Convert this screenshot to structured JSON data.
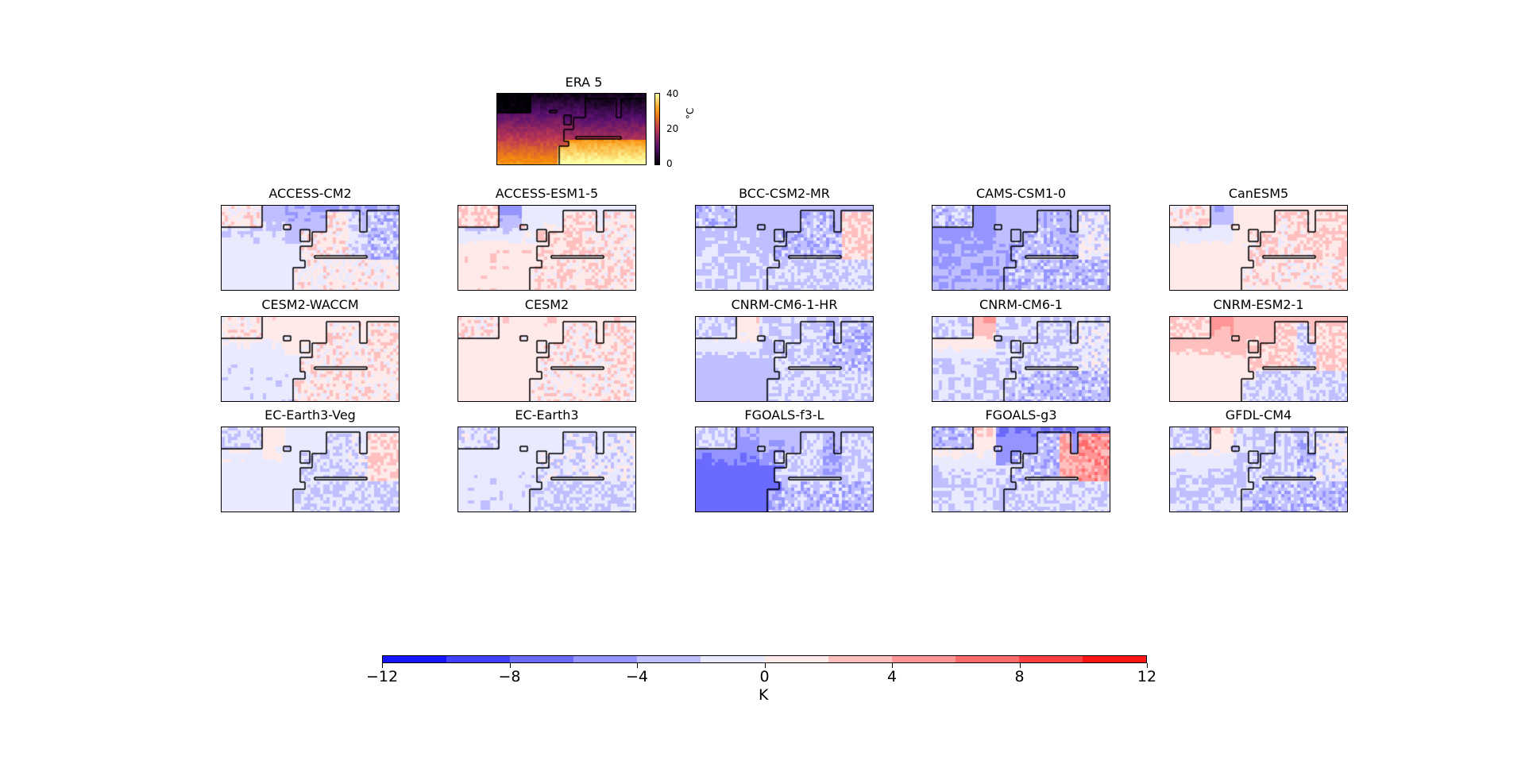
{
  "reference": {
    "title": "ERA 5",
    "colorbar": {
      "ticks": [
        "0",
        "20",
        "40"
      ],
      "unit": "$^\\circ$C",
      "unit_display": "°C",
      "cmap": "inferno",
      "range": [
        0,
        40
      ]
    }
  },
  "panels": [
    {
      "title": "ACCESS-CM2",
      "bias": {
        "atl_nw": -3,
        "atl_sw": -1,
        "atl_ne": -4,
        "africa": 0.5,
        "europe": 1,
        "east": -2,
        "mide": -3
      }
    },
    {
      "title": "ACCESS-ESM1-5",
      "bias": {
        "atl_nw": -5,
        "atl_sw": 1.5,
        "atl_ne": -1,
        "africa": 1.5,
        "europe": 2,
        "east": 1.5,
        "mide": 1
      }
    },
    {
      "title": "BCC-CSM2-MR",
      "bias": {
        "atl_nw": -3,
        "atl_sw": -2,
        "atl_ne": -3,
        "africa": -2,
        "europe": -3,
        "east": -3,
        "mide": 2
      }
    },
    {
      "title": "CAMS-CSM1-0",
      "bias": {
        "atl_nw": -5,
        "atl_sw": -4,
        "atl_ne": -3,
        "africa": -3,
        "europe": -3,
        "east": -4,
        "mide": -1
      }
    },
    {
      "title": "CanESM5",
      "bias": {
        "atl_nw": -4,
        "atl_sw": 1,
        "atl_ne": 1,
        "africa": 1,
        "europe": 1.5,
        "east": 1.5,
        "mide": 2
      }
    },
    {
      "title": "CESM2-WACCM",
      "bias": {
        "atl_nw": 1.5,
        "atl_sw": -1.5,
        "atl_ne": 1.5,
        "africa": 1,
        "europe": 1,
        "east": 0.5,
        "mide": 1.5
      }
    },
    {
      "title": "CESM2",
      "bias": {
        "atl_nw": 1.5,
        "atl_sw": 1,
        "atl_ne": 1.5,
        "africa": 1,
        "europe": 1,
        "east": 1,
        "mide": 1.5
      }
    },
    {
      "title": "CNRM-CM6-1-HR",
      "bias": {
        "atl_nw": 2,
        "atl_sw": -3,
        "atl_ne": -2,
        "africa": -2,
        "europe": -2,
        "east": -3,
        "mide": -3
      }
    },
    {
      "title": "CNRM-CM6-1",
      "bias": {
        "atl_nw": 4,
        "atl_sw": -2,
        "atl_ne": -2,
        "africa": -3,
        "europe": -2,
        "east": -2,
        "mide": -1
      }
    },
    {
      "title": "CNRM-ESM2-1",
      "bias": {
        "atl_nw": 5,
        "atl_sw": 1,
        "atl_ne": 3,
        "africa": -2,
        "europe": 2,
        "east": -2,
        "mide": 2
      }
    },
    {
      "title": "EC-Earth3-Veg",
      "bias": {
        "atl_nw": 1,
        "atl_sw": -1,
        "atl_ne": -1,
        "africa": -2,
        "europe": -2,
        "east": -1,
        "mide": 2
      }
    },
    {
      "title": "EC-Earth3",
      "bias": {
        "atl_nw": -1,
        "atl_sw": -1.5,
        "atl_ne": -1,
        "africa": -2,
        "europe": -1.5,
        "east": -1,
        "mide": -1
      }
    },
    {
      "title": "FGOALS-f3-L",
      "bias": {
        "atl_nw": -4,
        "atl_sw": -7,
        "atl_ne": -3,
        "africa": -3,
        "europe": -2,
        "east": -4,
        "mide": -2
      }
    },
    {
      "title": "FGOALS-g3",
      "bias": {
        "atl_nw": 2,
        "atl_sw": -2,
        "atl_ne": -6,
        "africa": -2,
        "europe": -3,
        "east": 4,
        "mide": 5
      }
    },
    {
      "title": "GFDL-CM4",
      "bias": {
        "atl_nw": 2,
        "atl_sw": -2,
        "atl_ne": -2,
        "africa": -3,
        "europe": -2,
        "east": -3,
        "mide": -1
      }
    }
  ],
  "colorbar": {
    "cmap": "bwr",
    "range": [
      -12,
      12
    ],
    "levels": 12,
    "tick_labels": [
      "−12",
      "−8",
      "−4",
      "0",
      "4",
      "8",
      "12"
    ],
    "tick_values": [
      -12,
      -8,
      -4,
      0,
      4,
      8,
      12
    ],
    "label": "K"
  },
  "chart_data": {
    "type": "heatmap",
    "title": "",
    "maps": [
      "ERA 5",
      "ACCESS-CM2",
      "ACCESS-ESM1-5",
      "BCC-CSM2-MR",
      "CAMS-CSM1-0",
      "CanESM5",
      "CESM2-WACCM",
      "CESM2",
      "CNRM-CM6-1-HR",
      "CNRM-CM6-1",
      "CNRM-ESM2-1",
      "EC-Earth3-Veg",
      "EC-Earth3",
      "FGOALS-f3-L",
      "FGOALS-g3",
      "GFDL-CM4"
    ],
    "colorbar_label": "K",
    "colorbar_range": [
      -12,
      12
    ],
    "reference_unit": "°C",
    "reference_range": [
      0,
      40
    ]
  }
}
